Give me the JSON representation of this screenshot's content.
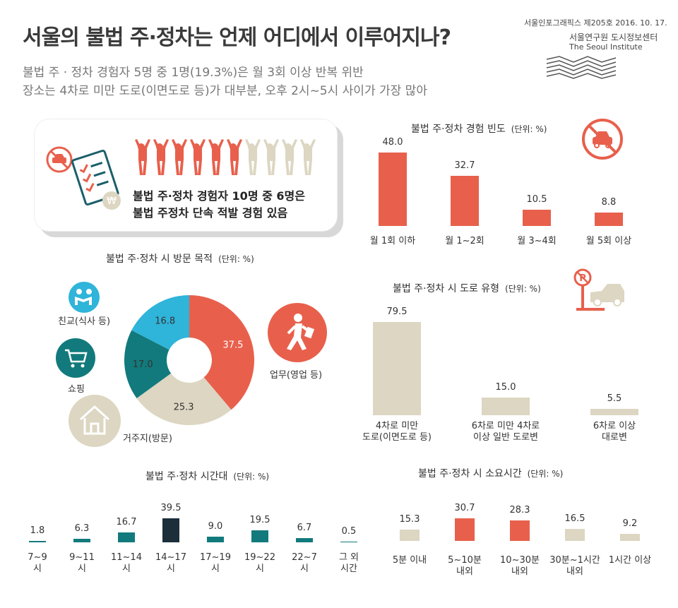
{
  "header": {
    "title": "서울의 불법 주·정차는 언제 어디에서 이루어지나?",
    "subtitle1": "불법 주 · 정차 경험자 5명 중 1명(19.3%)은 월 3회 이상 반복 위반",
    "subtitle2": "장소는 4차로 미만 도로(이면도로 등)가 대부분, 오후 2시~5시 사이가 가장 많아",
    "issue": "서울인포그래픽스 제205호 2016. 10. 17.",
    "institute_kr": "서울연구원 도시정보센터",
    "institute_en": "The Seoul Institute"
  },
  "highlight": {
    "line1": "불법 주·정차 경험자 10명 중 6명은",
    "line2": "불법 주정차 단속 적발 경험 있음",
    "people_total": 10,
    "people_highlighted": 6,
    "icons": [
      "no-car-icon",
      "checklist-icon",
      "won-coin-icon",
      "person-icon"
    ]
  },
  "colors": {
    "red": "#e8604c",
    "beige": "#dcd6c2",
    "teal": "#127a7c",
    "dark_teal": "#0e6668",
    "navy": "#1b2e3a",
    "sky": "#2fb4da"
  },
  "chart_data": [
    {
      "id": "frequency",
      "type": "bar",
      "title": "불법 주·정차 경험 빈도",
      "unit": "(단위: %)",
      "categories": [
        "월 1회 이하",
        "월 1~2회",
        "월 3~4회",
        "월 5회 이상"
      ],
      "values": [
        48.0,
        32.7,
        10.5,
        8.8
      ],
      "value_labels": [
        "48.0",
        "32.7",
        "10.5",
        "8.8"
      ],
      "color": "#e8604c"
    },
    {
      "id": "purpose",
      "type": "pie",
      "title": "불법 주·정차 시 방문 목적",
      "unit": "(단위: %)",
      "categories": [
        "업무(영업 등)",
        "거주지(방문)",
        "쇼핑",
        "친교(식사 등)"
      ],
      "values": [
        37.5,
        25.3,
        17.0,
        16.8
      ],
      "value_labels": [
        "37.5",
        "25.3",
        "17.0",
        "16.8"
      ],
      "slice_colors": [
        "#e8604c",
        "#dcd6c2",
        "#127a7c",
        "#2fb4da"
      ]
    },
    {
      "id": "road",
      "type": "bar",
      "title": "불법 주·정차 시 도로 유형",
      "unit": "(단위: %)",
      "categories": [
        [
          "4차로 미만",
          "도로(이면도로 등)"
        ],
        [
          "6차로 미만 4차로",
          "이상 일반 도로변"
        ],
        [
          "6차로 이상",
          "대로변"
        ]
      ],
      "values": [
        79.5,
        15.0,
        5.5
      ],
      "value_labels": [
        "79.5",
        "15.0",
        "5.5"
      ],
      "color": "#dcd6c2"
    },
    {
      "id": "timeslot",
      "type": "bar",
      "title": "불법 주·정차 시간대",
      "unit": "(단위: %)",
      "categories": [
        [
          "7~9",
          "시"
        ],
        [
          "9~11",
          "시"
        ],
        [
          "11~14",
          "시"
        ],
        [
          "14~17",
          "시"
        ],
        [
          "17~19",
          "시"
        ],
        [
          "19~22",
          "시"
        ],
        [
          "22~7",
          "시"
        ],
        [
          "그 외",
          "시간"
        ]
      ],
      "values": [
        1.8,
        6.3,
        16.7,
        39.5,
        9.0,
        19.5,
        6.7,
        0.5
      ],
      "value_labels": [
        "1.8",
        "6.3",
        "16.7",
        "39.5",
        "9.0",
        "19.5",
        "6.7",
        "0.5"
      ],
      "bar_colors": [
        "#127a7c",
        "#127a7c",
        "#127a7c",
        "#1b2e3a",
        "#127a7c",
        "#127a7c",
        "#127a7c",
        "#127a7c"
      ]
    },
    {
      "id": "duration",
      "type": "bar",
      "title": "불법 주·정차 시 소요시간",
      "unit": "(단위: %)",
      "categories": [
        [
          "5분 이내"
        ],
        [
          "5~10분",
          "내외"
        ],
        [
          "10~30분",
          "내외"
        ],
        [
          "30분~1시간",
          "내외"
        ],
        [
          "1시간 이상"
        ]
      ],
      "values": [
        15.3,
        30.7,
        28.3,
        16.5,
        9.2
      ],
      "value_labels": [
        "15.3",
        "30.7",
        "28.3",
        "16.5",
        "9.2"
      ],
      "bar_colors": [
        "#dcd6c2",
        "#e8604c",
        "#e8604c",
        "#dcd6c2",
        "#dcd6c2"
      ]
    }
  ]
}
